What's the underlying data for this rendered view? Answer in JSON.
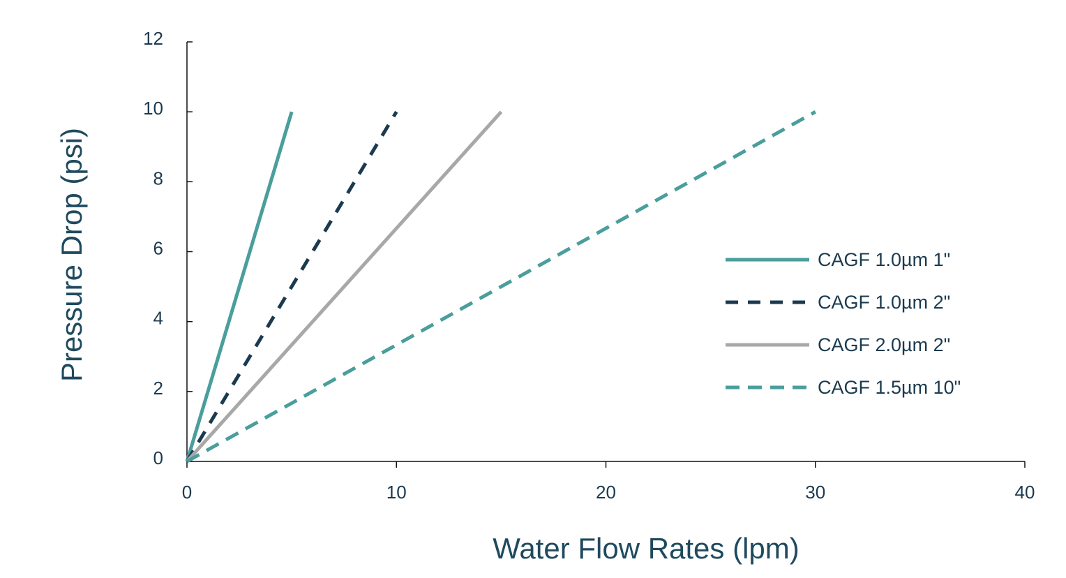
{
  "chart_data": {
    "type": "line",
    "title": "",
    "xlabel": "Water Flow Rates (lpm)",
    "ylabel": "Pressure Drop (psi)",
    "xlim": [
      0,
      40
    ],
    "ylim": [
      0,
      12
    ],
    "xticks": [
      0,
      10,
      20,
      30,
      40
    ],
    "yticks": [
      0,
      2,
      4,
      6,
      8,
      10,
      12
    ],
    "grid": false,
    "legend_position": "right",
    "series": [
      {
        "name": "CAGF 1.0µm 1\"",
        "x": [
          0,
          5
        ],
        "y": [
          0,
          10
        ],
        "color": "#4a9e9c",
        "style": "solid"
      },
      {
        "name": "CAGF 1.0µm 2\"",
        "x": [
          0,
          10
        ],
        "y": [
          0,
          10
        ],
        "color": "#1b3a4f",
        "style": "dashed"
      },
      {
        "name": "CAGF 2.0µm 2\"",
        "x": [
          0,
          15
        ],
        "y": [
          0,
          10
        ],
        "color": "#a8a8a8",
        "style": "solid"
      },
      {
        "name": "CAGF 1.5µm 10\"",
        "x": [
          0,
          30
        ],
        "y": [
          0,
          10
        ],
        "color": "#4a9e9c",
        "style": "dashed"
      }
    ]
  }
}
